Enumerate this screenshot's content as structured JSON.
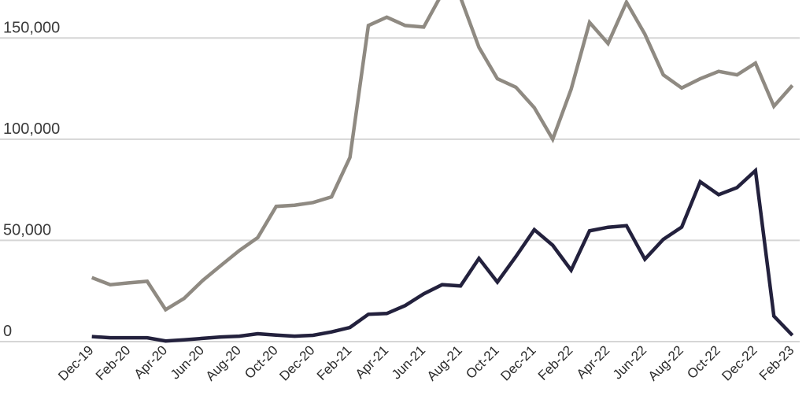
{
  "chart_data": {
    "type": "line",
    "title": "",
    "xlabel": "",
    "ylabel": "",
    "ylim": [
      0,
      150000
    ],
    "yticks": [
      0,
      50000,
      100000,
      150000
    ],
    "ytick_labels": [
      "0",
      "50,000",
      "100,000",
      "150,000"
    ],
    "grid": "horizontal",
    "legend": "none",
    "x": [
      "Dec-19",
      "Jan-20",
      "Feb-20",
      "Mar-20",
      "Apr-20",
      "May-20",
      "Jun-20",
      "Jul-20",
      "Aug-20",
      "Sep-20",
      "Oct-20",
      "Nov-20",
      "Dec-20",
      "Jan-21",
      "Feb-21",
      "Mar-21",
      "Apr-21",
      "May-21",
      "Jun-21",
      "Jul-21",
      "Aug-21",
      "Sep-21",
      "Oct-21",
      "Nov-21",
      "Dec-21",
      "Jan-22",
      "Feb-22",
      "Mar-22",
      "Apr-22",
      "May-22",
      "Jun-22",
      "Jul-22",
      "Aug-22",
      "Sep-22",
      "Oct-22",
      "Nov-22",
      "Dec-22",
      "Jan-23",
      "Feb-23"
    ],
    "xtick_labels": [
      "Dec-19",
      "Feb-20",
      "Apr-20",
      "Jun-20",
      "Aug-20",
      "Oct-20",
      "Dec-20",
      "Feb-21",
      "Apr-21",
      "Jun-21",
      "Aug-21",
      "Oct-21",
      "Dec-21",
      "Feb-22",
      "Apr-22",
      "Jun-22",
      "Aug-22",
      "Oct-22",
      "Dec-22",
      "Feb-23"
    ],
    "series": [
      {
        "color": "#8f8a82",
        "values": [
          31600,
          28100,
          29000,
          29800,
          15800,
          21300,
          30100,
          37600,
          45000,
          51400,
          66800,
          67400,
          68700,
          71500,
          91000,
          156200,
          160300,
          156200,
          155400,
          172000,
          170000,
          145400,
          129900,
          125700,
          115600,
          100000,
          124700,
          157700,
          147300,
          167700,
          151900,
          131800,
          125300,
          129900,
          133500,
          131800,
          137600,
          116300,
          126600
        ]
      },
      {
        "color": "#23213d",
        "values": [
          2500,
          1900,
          1900,
          1900,
          300,
          900,
          1600,
          2300,
          2700,
          3900,
          3200,
          2700,
          3100,
          4800,
          7000,
          13500,
          13900,
          17800,
          23600,
          28100,
          27500,
          41100,
          29400,
          42000,
          55300,
          47600,
          35300,
          54700,
          56500,
          57300,
          40700,
          50500,
          56600,
          79000,
          72600,
          76100,
          84500,
          12600,
          3100
        ]
      }
    ]
  }
}
